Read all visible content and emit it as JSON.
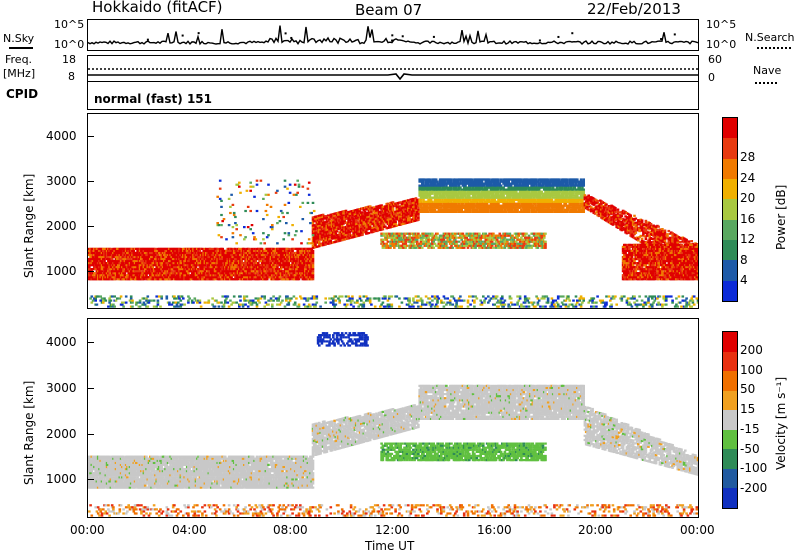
{
  "header": {
    "title": "Hokkaido (fitACF)",
    "beam": "Beam 07",
    "date": "22/Feb/2013"
  },
  "sky_panel": {
    "left_label": "N.Sky",
    "right_label": "N.Search",
    "left_ticks": [
      "10^5",
      "10^0"
    ],
    "right_ticks": [
      "10^5",
      "10^0"
    ]
  },
  "freq_panel": {
    "left_label_1": "Freq.",
    "left_label_2": "[MHz]",
    "right_label": "Nave",
    "left_ticks": [
      "18",
      "8"
    ],
    "right_ticks": [
      "60",
      "0"
    ]
  },
  "cpid_panel": {
    "label": "CPID",
    "text": "normal (fast) 151"
  },
  "chart_data": [
    {
      "type": "heatmap",
      "name": "power",
      "ylabel": "Slant Range [km]",
      "xlabel": "",
      "yticks": [
        "1000",
        "2000",
        "3000",
        "4000"
      ],
      "ylim": [
        180,
        4500
      ],
      "colorbar_label": "Power [dB]",
      "colorbar_ticks": [
        "4",
        "8",
        "12",
        "16",
        "20",
        "24",
        "28"
      ],
      "colorbar_colors": [
        "#0c2bd8",
        "#1d5aa8",
        "#2e8b57",
        "#59a860",
        "#a8c840",
        "#f0b000",
        "#f07a00",
        "#e83a10",
        "#e00000"
      ],
      "regions": [
        {
          "t_start": 0.0,
          "t_end": 8.8,
          "r_min": 800,
          "r_max": 1500,
          "level": "high"
        },
        {
          "t_start": 8.8,
          "t_end": 13.0,
          "r_min": 1500,
          "r_max": 2700,
          "level": "high"
        },
        {
          "t_start": 13.0,
          "t_end": 19.5,
          "r_min": 2300,
          "r_max": 3100,
          "level": "mid"
        },
        {
          "t_start": 11.5,
          "t_end": 18.0,
          "r_min": 1500,
          "r_max": 1900,
          "level": "mid"
        },
        {
          "t_start": 19.5,
          "t_end": 24.0,
          "r_min": 800,
          "r_max": 2500,
          "level": "high"
        }
      ]
    },
    {
      "type": "heatmap",
      "name": "velocity",
      "ylabel": "Slant Range [km]",
      "xlabel": "Time UT",
      "xticks": [
        "00:00",
        "04:00",
        "08:00",
        "12:00",
        "16:00",
        "20:00",
        "00:00"
      ],
      "yticks": [
        "1000",
        "2000",
        "3000",
        "4000"
      ],
      "ylim": [
        180,
        4500
      ],
      "colorbar_label": "Velocity [m s⁻¹]",
      "colorbar_ticks": [
        "200",
        "100",
        "50",
        "15",
        "-15",
        "-50",
        "-100",
        "-200"
      ],
      "colorbar_colors": [
        "#1030c0",
        "#205aa0",
        "#2e8b57",
        "#60c040",
        "#c8c8c8",
        "#f0a020",
        "#f07000",
        "#e83010",
        "#e00000"
      ]
    }
  ]
}
